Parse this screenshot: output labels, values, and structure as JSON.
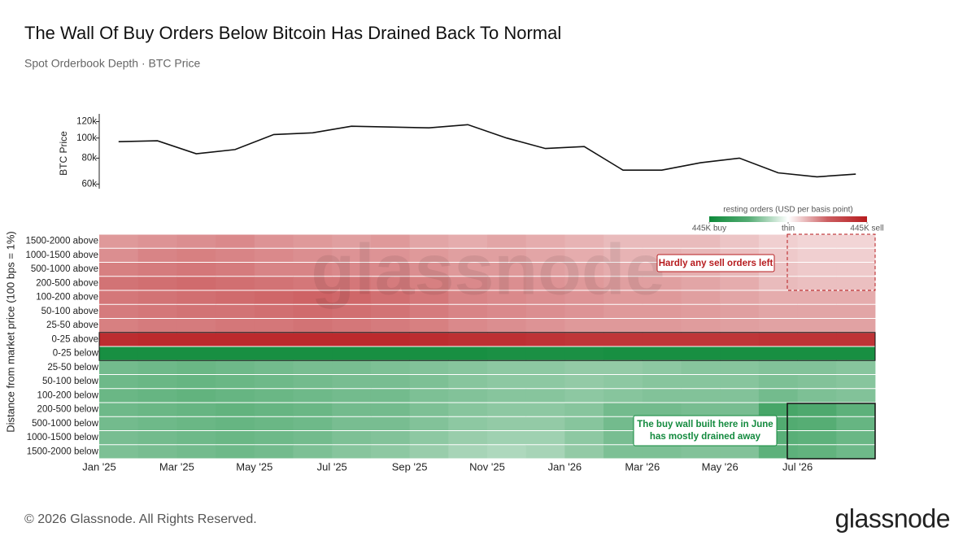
{
  "header": {
    "title": "The Wall Of Buy Orders Below Bitcoin Has Drained Back To Normal",
    "subtitle": "Spot Orderbook Depth · BTC Price"
  },
  "chart_data": [
    {
      "type": "line",
      "y_label": "BTC Price",
      "color": "#111111",
      "log_scale": true,
      "values": [
        96000,
        97000,
        84000,
        88000,
        104000,
        106000,
        114000,
        113000,
        112000,
        116000,
        100000,
        89000,
        91000,
        70000,
        70000,
        76000,
        80000,
        68000,
        65000,
        67000
      ],
      "ylim": [
        57000,
        125000
      ],
      "yticks": [
        {
          "value": 60000,
          "label": "60k"
        },
        {
          "value": 80000,
          "label": "80k"
        },
        {
          "value": 100000,
          "label": "100k"
        },
        {
          "value": 120000,
          "label": "120k"
        }
      ]
    },
    {
      "type": "heatmap",
      "y_label": "Distance from market price (100 bps = 1%)",
      "categories": [
        "Jan '25",
        null,
        "Mar '25",
        null,
        "May '25",
        null,
        "Jul '25",
        null,
        "Sep '25",
        null,
        "Nov '25",
        null,
        "Jan '26",
        null,
        "Mar '26",
        null,
        "May '26",
        null,
        "Jul '26",
        null
      ],
      "zlim": [
        -445,
        445
      ],
      "colors": {
        "buy": "#0e8a3a",
        "thin": "#ffffff",
        "sell": "#b71c1f"
      },
      "colorbar": {
        "title": "resting orders (USD per basis point)",
        "ticks": [
          {
            "value": -445,
            "label": "445K buy"
          },
          {
            "value": 0,
            "label": "thin"
          },
          {
            "value": 445,
            "label": "445K sell"
          }
        ]
      },
      "rows": [
        {
          "name": "1500-2000 above",
          "values": [
            90,
            100,
            110,
            120,
            100,
            90,
            80,
            90,
            70,
            60,
            70,
            60,
            50,
            40,
            40,
            40,
            30,
            20,
            15,
            15
          ]
        },
        {
          "name": "1000-1500 above",
          "values": [
            110,
            130,
            140,
            130,
            120,
            110,
            100,
            100,
            90,
            80,
            80,
            70,
            60,
            50,
            50,
            45,
            35,
            25,
            20,
            20
          ]
        },
        {
          "name": "500-1000 above",
          "values": [
            140,
            150,
            160,
            150,
            130,
            130,
            120,
            120,
            110,
            90,
            90,
            80,
            70,
            60,
            60,
            55,
            45,
            30,
            25,
            25
          ]
        },
        {
          "name": "200-500 above",
          "values": [
            170,
            180,
            190,
            180,
            170,
            160,
            160,
            150,
            140,
            120,
            110,
            100,
            90,
            80,
            80,
            70,
            60,
            40,
            35,
            35
          ]
        },
        {
          "name": "100-200 above",
          "values": [
            160,
            170,
            180,
            190,
            200,
            210,
            200,
            180,
            160,
            130,
            120,
            110,
            100,
            90,
            90,
            80,
            70,
            60,
            60,
            60
          ]
        },
        {
          "name": "50-100 above",
          "values": [
            150,
            160,
            170,
            170,
            180,
            190,
            180,
            170,
            150,
            130,
            120,
            110,
            100,
            90,
            90,
            85,
            80,
            70,
            70,
            70
          ]
        },
        {
          "name": "25-50 above",
          "values": [
            140,
            150,
            150,
            160,
            160,
            170,
            160,
            150,
            140,
            120,
            110,
            100,
            90,
            90,
            90,
            85,
            80,
            75,
            75,
            75
          ]
        },
        {
          "name": "0-25 above",
          "values": [
            380,
            390,
            390,
            390,
            390,
            390,
            390,
            390,
            380,
            370,
            370,
            360,
            350,
            350,
            350,
            350,
            350,
            360,
            360,
            360
          ]
        },
        {
          "name": "0-25 below",
          "values": [
            -410,
            -410,
            -410,
            -410,
            -410,
            -410,
            -410,
            -410,
            -410,
            -410,
            -400,
            -400,
            -400,
            -410,
            -410,
            -410,
            -410,
            -410,
            -410,
            -410
          ]
        },
        {
          "name": "25-50 below",
          "values": [
            -150,
            -160,
            -170,
            -160,
            -150,
            -140,
            -140,
            -130,
            -120,
            -110,
            -100,
            -100,
            -90,
            -90,
            -100,
            -110,
            -110,
            -120,
            -120,
            -110
          ]
        },
        {
          "name": "50-100 below",
          "values": [
            -160,
            -170,
            -180,
            -170,
            -160,
            -150,
            -140,
            -140,
            -130,
            -110,
            -100,
            -100,
            -90,
            -100,
            -110,
            -110,
            -110,
            -130,
            -120,
            -110
          ]
        },
        {
          "name": "100-200 below",
          "values": [
            -170,
            -180,
            -190,
            -180,
            -170,
            -160,
            -150,
            -150,
            -130,
            -120,
            -110,
            -110,
            -100,
            -110,
            -120,
            -120,
            -120,
            -150,
            -130,
            -120
          ]
        },
        {
          "name": "200-500 below",
          "values": [
            -160,
            -170,
            -180,
            -190,
            -180,
            -170,
            -150,
            -150,
            -130,
            -110,
            -100,
            -100,
            -110,
            -150,
            -150,
            -140,
            -140,
            -260,
            -240,
            -200
          ]
        },
        {
          "name": "500-1000 below",
          "values": [
            -150,
            -160,
            -170,
            -180,
            -170,
            -160,
            -140,
            -140,
            -120,
            -100,
            -90,
            -90,
            -110,
            -150,
            -150,
            -140,
            -140,
            -230,
            -220,
            -180
          ]
        },
        {
          "name": "1000-1500 below",
          "values": [
            -140,
            -150,
            -160,
            -170,
            -160,
            -150,
            -130,
            -120,
            -100,
            -80,
            -70,
            -70,
            -100,
            -140,
            -140,
            -130,
            -130,
            -210,
            -200,
            -170
          ]
        },
        {
          "name": "1500-2000 below",
          "values": [
            -130,
            -140,
            -150,
            -160,
            -150,
            -130,
            -110,
            -100,
            -80,
            -60,
            -50,
            -60,
            -90,
            -130,
            -130,
            -120,
            -120,
            -200,
            -190,
            -160
          ]
        }
      ],
      "annotations": [
        {
          "lines": [
            "Hardly any sell orders left"
          ],
          "color": "#b71c1f"
        },
        {
          "lines": [
            "The buy wall built here in June",
            "has mostly drained away"
          ],
          "color": "#138a3e"
        }
      ],
      "watermark": "glassnode"
    }
  ],
  "footer": {
    "copyright": "© 2026 Glassnode. All Rights Reserved.",
    "logo": "glassnode"
  }
}
